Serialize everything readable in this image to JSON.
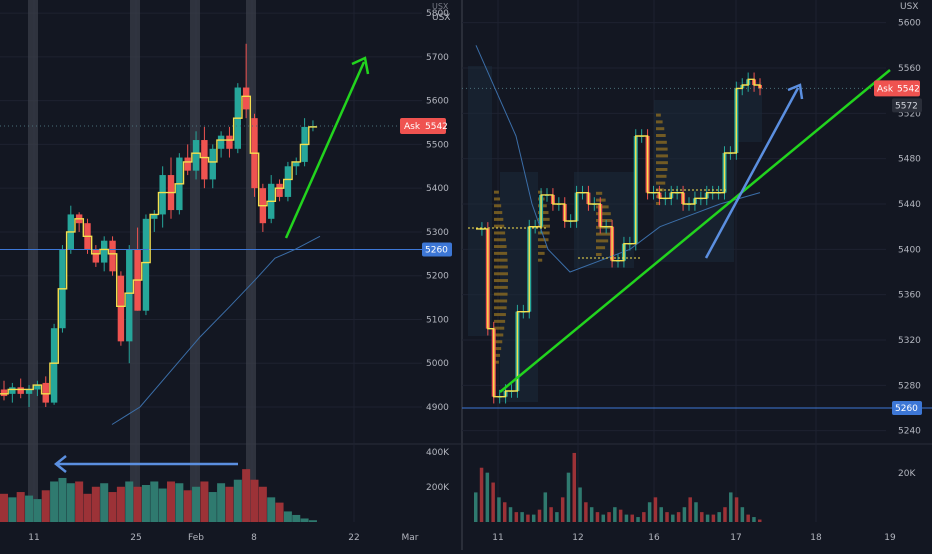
{
  "colors": {
    "background": "#131722",
    "up": "#26a69a",
    "down": "#ef5350",
    "vol_up": "#2f7a6f",
    "vol_down": "#9c3237",
    "ask_badge": "#ef5350",
    "grid": "#1e2230",
    "yellow": "#f5e04f",
    "green_line": "#22d41e",
    "blue_line": "#5b8fe0",
    "hline": "#3d77d6"
  },
  "left_chart": {
    "currency": "USX",
    "ask_badge": {
      "label": "Ask",
      "value": "5542"
    },
    "level_badge": "5260",
    "price_ticks": [
      "5800",
      "5700",
      "5600",
      "5500",
      "5400",
      "5300",
      "5200",
      "5100",
      "5000",
      "4900"
    ],
    "volume_ticks": [
      "400K",
      "200K"
    ],
    "date_ticks": [
      "11",
      "25",
      "Feb",
      "8",
      "22",
      "Mar"
    ],
    "chart_data": {
      "type": "candlestick",
      "ylim": [
        4820,
        5830
      ],
      "ask_price": 5542,
      "horizontal_level": 5260,
      "candles": [
        {
          "o": 4940,
          "h": 4960,
          "l": 4915,
          "c": 4925
        },
        {
          "o": 4930,
          "h": 4955,
          "l": 4910,
          "c": 4945
        },
        {
          "o": 4945,
          "h": 4965,
          "l": 4920,
          "c": 4930
        },
        {
          "o": 4930,
          "h": 4950,
          "l": 4900,
          "c": 4940
        },
        {
          "o": 4940,
          "h": 4960,
          "l": 4925,
          "c": 4950
        },
        {
          "o": 4955,
          "h": 4970,
          "l": 4900,
          "c": 4910
        },
        {
          "o": 4910,
          "h": 5090,
          "l": 4905,
          "c": 5080
        },
        {
          "o": 5080,
          "h": 5270,
          "l": 5070,
          "c": 5260
        },
        {
          "o": 5260,
          "h": 5360,
          "l": 5250,
          "c": 5340
        },
        {
          "o": 5340,
          "h": 5345,
          "l": 5300,
          "c": 5320
        },
        {
          "o": 5320,
          "h": 5330,
          "l": 5250,
          "c": 5260
        },
        {
          "o": 5260,
          "h": 5270,
          "l": 5220,
          "c": 5230
        },
        {
          "o": 5230,
          "h": 5290,
          "l": 5210,
          "c": 5280
        },
        {
          "o": 5280,
          "h": 5290,
          "l": 5200,
          "c": 5210
        },
        {
          "o": 5200,
          "h": 5210,
          "l": 5040,
          "c": 5050
        },
        {
          "o": 5050,
          "h": 5270,
          "l": 5000,
          "c": 5260
        },
        {
          "o": 5260,
          "h": 5310,
          "l": 5120,
          "c": 5120
        },
        {
          "o": 5120,
          "h": 5340,
          "l": 5110,
          "c": 5330
        },
        {
          "o": 5330,
          "h": 5350,
          "l": 5300,
          "c": 5340
        },
        {
          "o": 5340,
          "h": 5450,
          "l": 5310,
          "c": 5430
        },
        {
          "o": 5430,
          "h": 5470,
          "l": 5330,
          "c": 5350
        },
        {
          "o": 5350,
          "h": 5480,
          "l": 5340,
          "c": 5470
        },
        {
          "o": 5470,
          "h": 5500,
          "l": 5430,
          "c": 5440
        },
        {
          "o": 5440,
          "h": 5530,
          "l": 5420,
          "c": 5510
        },
        {
          "o": 5510,
          "h": 5540,
          "l": 5400,
          "c": 5420
        },
        {
          "o": 5420,
          "h": 5500,
          "l": 5400,
          "c": 5490
        },
        {
          "o": 5490,
          "h": 5530,
          "l": 5470,
          "c": 5520
        },
        {
          "o": 5520,
          "h": 5540,
          "l": 5470,
          "c": 5490
        },
        {
          "o": 5490,
          "h": 5640,
          "l": 5480,
          "c": 5630
        },
        {
          "o": 5630,
          "h": 5730,
          "l": 5560,
          "c": 5580
        },
        {
          "o": 5560,
          "h": 5570,
          "l": 5380,
          "c": 5400
        },
        {
          "o": 5400,
          "h": 5410,
          "l": 5300,
          "c": 5320
        },
        {
          "o": 5330,
          "h": 5430,
          "l": 5320,
          "c": 5410
        },
        {
          "o": 5410,
          "h": 5420,
          "l": 5370,
          "c": 5380
        },
        {
          "o": 5380,
          "h": 5460,
          "l": 5370,
          "c": 5450
        },
        {
          "o": 5450,
          "h": 5470,
          "l": 5430,
          "c": 5460
        },
        {
          "o": 5460,
          "h": 5560,
          "l": 5450,
          "c": 5540
        },
        {
          "o": 5540,
          "h": 5555,
          "l": 5530,
          "c": 5542
        }
      ],
      "volumes": [
        160,
        140,
        170,
        150,
        130,
        180,
        230,
        250,
        220,
        230,
        160,
        200,
        220,
        170,
        200,
        230,
        200,
        210,
        230,
        190,
        230,
        220,
        180,
        200,
        230,
        170,
        220,
        200,
        240,
        300,
        240,
        200,
        140,
        110,
        60,
        40,
        20,
        10
      ],
      "volume_ylim": [
        0,
        420
      ]
    }
  },
  "right_chart": {
    "currency": "USX",
    "ask_badge": {
      "label": "Ask",
      "value": "5542"
    },
    "sub_badge": "5572",
    "level_badge": "5260",
    "price_ticks": [
      "5600",
      "5560",
      "5520",
      "5480",
      "5440",
      "5400",
      "5360",
      "5320",
      "5280",
      "5240"
    ],
    "volume_ticks": [
      "20K"
    ],
    "date_ticks": [
      "11",
      "12",
      "16",
      "17",
      "18",
      "19"
    ],
    "chart_data": {
      "type": "step-line",
      "ylim": [
        5230,
        5620
      ],
      "ask_price": 5542,
      "horizontal_level": 5260,
      "price_path": [
        5418,
        5418,
        5330,
        5270,
        5270,
        5275,
        5275,
        5345,
        5345,
        5420,
        5420,
        5448,
        5448,
        5440,
        5440,
        5425,
        5425,
        5450,
        5450,
        5440,
        5440,
        5420,
        5420,
        5390,
        5390,
        5405,
        5405,
        5500,
        5500,
        5450,
        5450,
        5445,
        5445,
        5450,
        5450,
        5440,
        5440,
        5445,
        5445,
        5450,
        5450,
        5450,
        5485,
        5485,
        5542,
        5545,
        5550,
        5545,
        5542
      ],
      "volumes": [
        12,
        22,
        20,
        16,
        10,
        8,
        6,
        4,
        4,
        3,
        3,
        5,
        12,
        6,
        4,
        10,
        20,
        28,
        14,
        8,
        6,
        4,
        3,
        4,
        6,
        5,
        3,
        3,
        2,
        4,
        8,
        10,
        6,
        4,
        3,
        4,
        6,
        10,
        8,
        4,
        3,
        3,
        4,
        6,
        12,
        10,
        6,
        3,
        2,
        1
      ],
      "volume_ylim": [
        0,
        30
      ]
    }
  }
}
